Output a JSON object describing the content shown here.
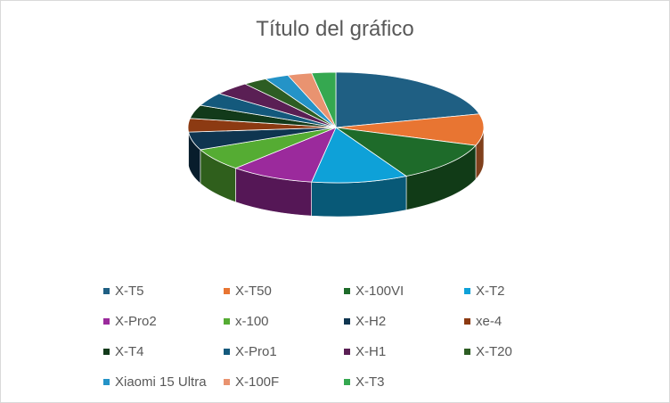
{
  "chart_data": {
    "type": "pie",
    "title": "Título del gráfico",
    "style": "3d",
    "legend_position": "bottom",
    "categories": [
      "X-T5",
      "X-T50",
      "X-100VI",
      "X-T2",
      "X-Pro2",
      "x-100",
      "X-H2",
      "xe-4",
      "X-T4",
      "X-Pro1",
      "X-H1",
      "X-T20",
      "Xiaomi 15 Ultra",
      "X-100F",
      "X-T3"
    ],
    "values": [
      16,
      7,
      9,
      8,
      7,
      5,
      4,
      3,
      3,
      3,
      3,
      2,
      2,
      2,
      2
    ],
    "colors": [
      "#1f5f83",
      "#e87532",
      "#1e6b2a",
      "#0ea1d8",
      "#9b2a9c",
      "#55ac33",
      "#0f3550",
      "#8c3a12",
      "#123a1a",
      "#14597c",
      "#5a1f54",
      "#2d5d23",
      "#2493c7",
      "#e99370",
      "#35a850"
    ]
  }
}
